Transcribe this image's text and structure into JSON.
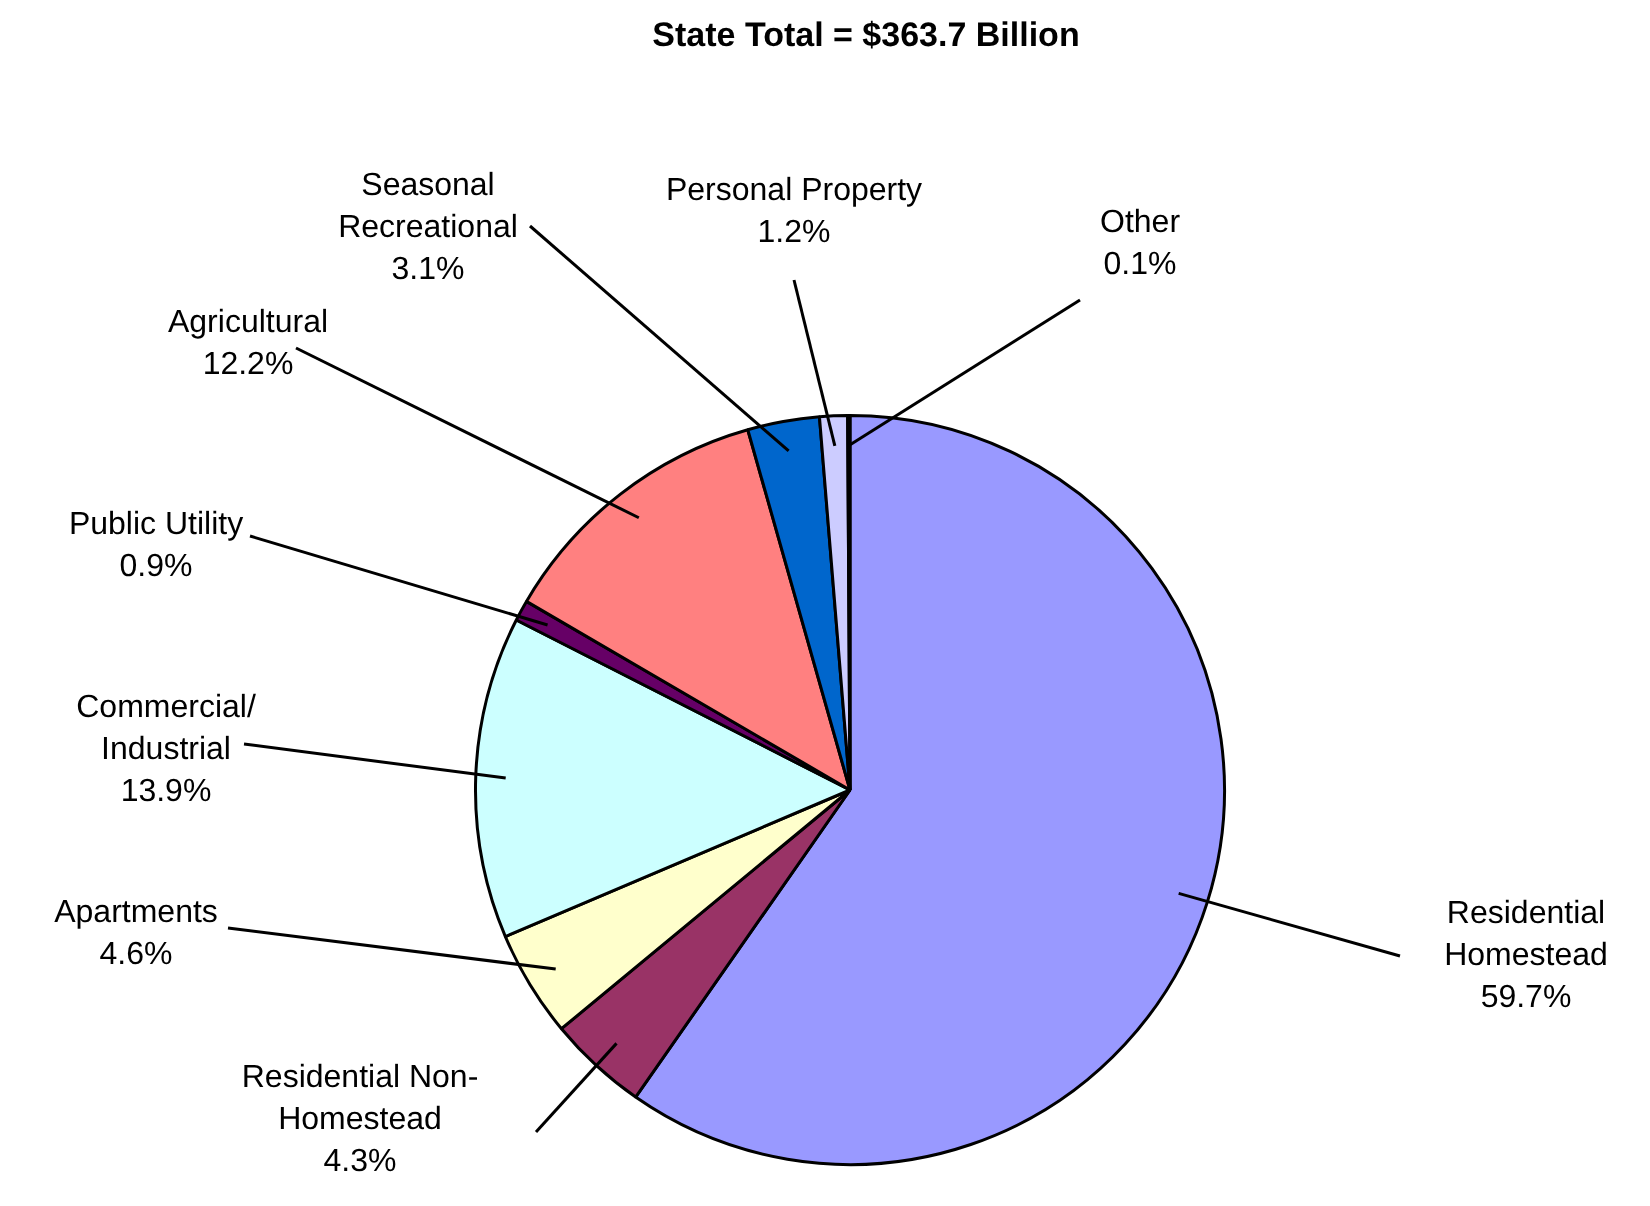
{
  "chart_data": {
    "type": "pie",
    "title": "State Total = $363.7 Billion",
    "categories": [
      "Residential\nHomestead",
      "Residential Non-\nHomestead",
      "Apartments",
      "Commercial/\nIndustrial",
      "Public Utility",
      "Agricultural",
      "Seasonal\nRecreational",
      "Personal Property",
      "Other"
    ],
    "values": [
      59.7,
      4.3,
      4.6,
      13.9,
      0.9,
      12.2,
      3.1,
      1.2,
      0.1
    ],
    "value_labels": [
      "59.7%",
      "4.3%",
      "4.6%",
      "13.9%",
      "0.9%",
      "12.2%",
      "3.1%",
      "1.2%",
      "0.1%"
    ],
    "colors": [
      "#9999ff",
      "#993366",
      "#ffffcc",
      "#ccffff",
      "#660066",
      "#ff8080",
      "#0066cc",
      "#ccccff",
      "#000080"
    ],
    "legend": false
  }
}
